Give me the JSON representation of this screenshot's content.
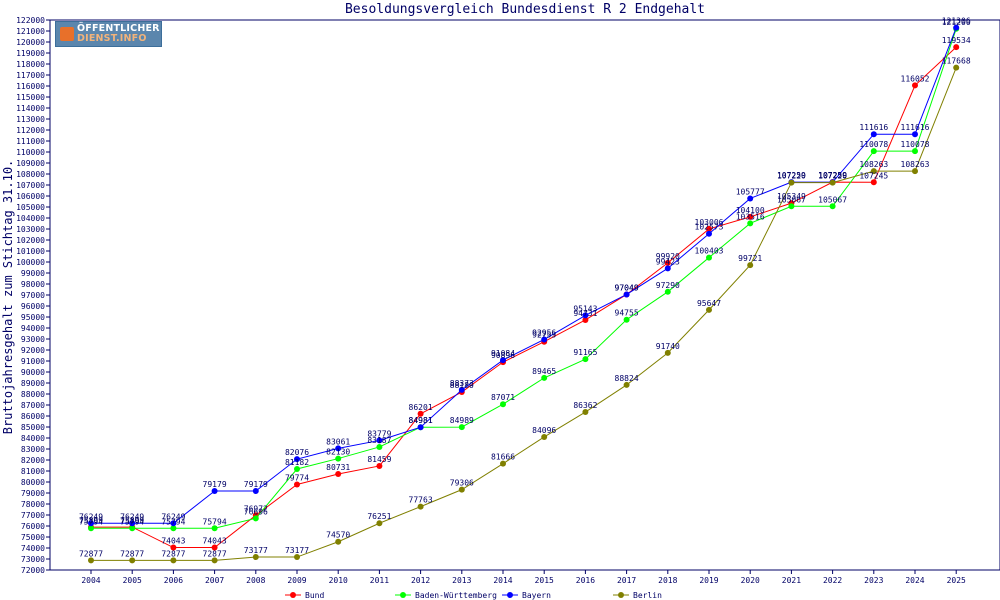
{
  "chart_data": {
    "type": "line",
    "title": "Besoldungsvergleich Bundesdienst R 2 Endgehalt",
    "xlabel": "",
    "ylabel": "Bruttojahresgehalt zum Stichtag 31.10.",
    "categories": [
      "2004",
      "2005",
      "2006",
      "2007",
      "2008",
      "2009",
      "2010",
      "2011",
      "2012",
      "2013",
      "2014",
      "2015",
      "2016",
      "2017",
      "2018",
      "2019",
      "2020",
      "2021",
      "2022",
      "2023",
      "2024",
      "2025"
    ],
    "ylim": [
      72000,
      122000
    ],
    "ytick_step": 1000,
    "grid": false,
    "legend_position": "bottom",
    "series": [
      {
        "name": "Bund",
        "color": "#ff0000",
        "values": [
          75899,
          75899,
          74043,
          74043,
          76972,
          79774,
          80731,
          81459,
          86201,
          88180,
          90896,
          92753,
          94731,
          97049,
          99920,
          103006,
          104100,
          105349,
          107259,
          107245,
          116052,
          119534
        ]
      },
      {
        "name": "Baden-Württemberg",
        "color": "#00ff00",
        "values": [
          75794,
          75794,
          75794,
          75794,
          76696,
          81182,
          82130,
          83187,
          84981,
          84989,
          87071,
          89465,
          91165,
          94755,
          97290,
          100403,
          103516,
          105067,
          105067,
          110078,
          110078,
          121200
        ]
      },
      {
        "name": "Bayern",
        "color": "#0000ff",
        "values": [
          76249,
          76249,
          76249,
          79179,
          79179,
          82076,
          83061,
          83779,
          84981,
          88373,
          91084,
          92956,
          95143,
          97049,
          99423,
          102573,
          105777,
          107259,
          107259,
          111616,
          111616,
          121306
        ]
      },
      {
        "name": "Berlin",
        "color": "#808000",
        "values": [
          72877,
          72877,
          72877,
          72877,
          73177,
          73177,
          74570,
          76251,
          77763,
          79306,
          81666,
          84096,
          86362,
          88824,
          91740,
          95647,
          99721,
          107220,
          107220,
          108263,
          108263,
          117668
        ]
      }
    ]
  },
  "logo": {
    "line1": "ÖFFENTLICHER",
    "line2": "DIENST.INFO"
  },
  "style": {
    "axis_color": "#000066",
    "text_color": "#000066"
  }
}
